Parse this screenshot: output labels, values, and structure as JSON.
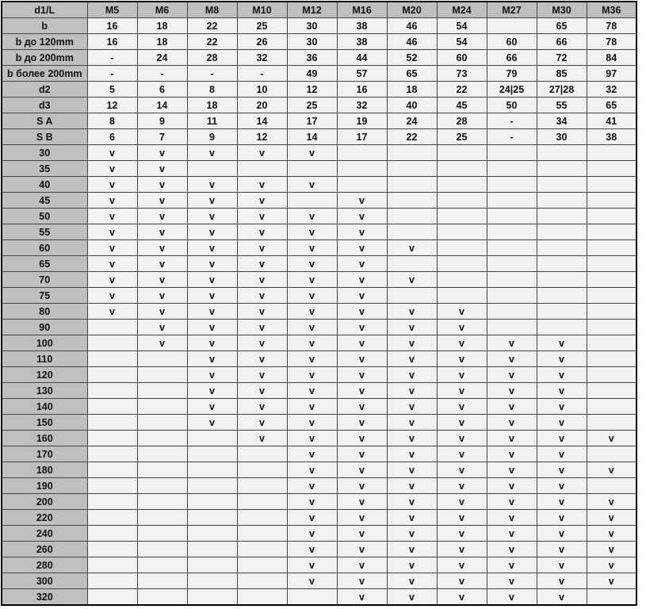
{
  "table": {
    "corner": "d1/L",
    "columns": [
      "M5",
      "M6",
      "M8",
      "M10",
      "M12",
      "M16",
      "M20",
      "M24",
      "M27",
      "M30",
      "M36"
    ],
    "rows": [
      {
        "label": "b",
        "cells": [
          "16",
          "18",
          "22",
          "25",
          "30",
          "38",
          "46",
          "54",
          "",
          "65",
          "78"
        ]
      },
      {
        "label": "b до 120mm",
        "cells": [
          "16",
          "18",
          "22",
          "26",
          "30",
          "38",
          "46",
          "54",
          "60",
          "66",
          "78"
        ]
      },
      {
        "label": "b до 200mm",
        "cells": [
          "-",
          "24",
          "28",
          "32",
          "36",
          "44",
          "52",
          "60",
          "66",
          "72",
          "84"
        ]
      },
      {
        "label": "b более 200mm",
        "cells": [
          "-",
          "-",
          "-",
          "-",
          "49",
          "57",
          "65",
          "73",
          "79",
          "85",
          "97"
        ]
      },
      {
        "label": "d2",
        "cells": [
          "5",
          "6",
          "8",
          "10",
          "12",
          "16",
          "18",
          "22",
          "24|25",
          "27|28",
          "32"
        ]
      },
      {
        "label": "d3",
        "cells": [
          "12",
          "14",
          "18",
          "20",
          "25",
          "32",
          "40",
          "45",
          "50",
          "55",
          "65"
        ]
      },
      {
        "label": "S A",
        "cells": [
          "8",
          "9",
          "11",
          "14",
          "17",
          "19",
          "24",
          "28",
          "-",
          "34",
          "41"
        ]
      },
      {
        "label": "S B",
        "cells": [
          "6",
          "7",
          "9",
          "12",
          "14",
          "17",
          "22",
          "25",
          "-",
          "30",
          "38"
        ]
      },
      {
        "label": "30",
        "cells": [
          "v",
          "v",
          "v",
          "v",
          "v",
          "",
          "",
          "",
          "",
          "",
          ""
        ]
      },
      {
        "label": "35",
        "cells": [
          "v",
          "v",
          "",
          "",
          "",
          "",
          "",
          "",
          "",
          "",
          ""
        ]
      },
      {
        "label": "40",
        "cells": [
          "v",
          "v",
          "v",
          "v",
          "v",
          "",
          "",
          "",
          "",
          "",
          ""
        ]
      },
      {
        "label": "45",
        "cells": [
          "v",
          "v",
          "v",
          "v",
          "",
          "v",
          "",
          "",
          "",
          "",
          ""
        ]
      },
      {
        "label": "50",
        "cells": [
          "v",
          "v",
          "v",
          "v",
          "v",
          "v",
          "",
          "",
          "",
          "",
          ""
        ]
      },
      {
        "label": "55",
        "cells": [
          "v",
          "v",
          "v",
          "v",
          "v",
          "v",
          "",
          "",
          "",
          "",
          ""
        ]
      },
      {
        "label": "60",
        "cells": [
          "v",
          "v",
          "v",
          "v",
          "v",
          "v",
          "v",
          "",
          "",
          "",
          ""
        ]
      },
      {
        "label": "65",
        "cells": [
          "v",
          "v",
          "v",
          "v",
          "v",
          "v",
          "",
          "",
          "",
          "",
          ""
        ]
      },
      {
        "label": "70",
        "cells": [
          "v",
          "v",
          "v",
          "v",
          "v",
          "v",
          "v",
          "",
          "",
          "",
          ""
        ]
      },
      {
        "label": "75",
        "cells": [
          "v",
          "v",
          "v",
          "v",
          "v",
          "v",
          "",
          "",
          "",
          "",
          ""
        ]
      },
      {
        "label": "80",
        "cells": [
          "v",
          "v",
          "v",
          "v",
          "v",
          "v",
          "v",
          "v",
          "",
          "",
          ""
        ]
      },
      {
        "label": "90",
        "cells": [
          "",
          "v",
          "v",
          "v",
          "v",
          "v",
          "v",
          "v",
          "",
          "",
          ""
        ]
      },
      {
        "label": "100",
        "cells": [
          "",
          "v",
          "v",
          "v",
          "v",
          "v",
          "v",
          "v",
          "v",
          "v",
          ""
        ]
      },
      {
        "label": "110",
        "cells": [
          "",
          "",
          "v",
          "v",
          "v",
          "v",
          "v",
          "v",
          "v",
          "v",
          ""
        ]
      },
      {
        "label": "120",
        "cells": [
          "",
          "",
          "v",
          "v",
          "v",
          "v",
          "v",
          "v",
          "v",
          "v",
          ""
        ]
      },
      {
        "label": "130",
        "cells": [
          "",
          "",
          "v",
          "v",
          "v",
          "v",
          "v",
          "v",
          "v",
          "v",
          ""
        ]
      },
      {
        "label": "140",
        "cells": [
          "",
          "",
          "v",
          "v",
          "v",
          "v",
          "v",
          "v",
          "v",
          "v",
          ""
        ]
      },
      {
        "label": "150",
        "cells": [
          "",
          "",
          "v",
          "v",
          "v",
          "v",
          "v",
          "v",
          "v",
          "v",
          ""
        ]
      },
      {
        "label": "160",
        "cells": [
          "",
          "",
          "",
          "v",
          "v",
          "v",
          "v",
          "v",
          "v",
          "v",
          "v"
        ]
      },
      {
        "label": "170",
        "cells": [
          "",
          "",
          "",
          "",
          "v",
          "v",
          "v",
          "v",
          "v",
          "v",
          ""
        ]
      },
      {
        "label": "180",
        "cells": [
          "",
          "",
          "",
          "",
          "v",
          "v",
          "v",
          "v",
          "v",
          "v",
          "v"
        ]
      },
      {
        "label": "190",
        "cells": [
          "",
          "",
          "",
          "",
          "v",
          "v",
          "v",
          "v",
          "v",
          "v",
          ""
        ]
      },
      {
        "label": "200",
        "cells": [
          "",
          "",
          "",
          "",
          "v",
          "v",
          "v",
          "v",
          "v",
          "v",
          "v"
        ]
      },
      {
        "label": "220",
        "cells": [
          "",
          "",
          "",
          "",
          "v",
          "v",
          "v",
          "v",
          "v",
          "v",
          "v"
        ]
      },
      {
        "label": "240",
        "cells": [
          "",
          "",
          "",
          "",
          "v",
          "v",
          "v",
          "v",
          "v",
          "v",
          "v"
        ]
      },
      {
        "label": "260",
        "cells": [
          "",
          "",
          "",
          "",
          "v",
          "v",
          "v",
          "v",
          "v",
          "v",
          "v"
        ]
      },
      {
        "label": "280",
        "cells": [
          "",
          "",
          "",
          "",
          "v",
          "v",
          "v",
          "v",
          "v",
          "v",
          "v"
        ]
      },
      {
        "label": "300",
        "cells": [
          "",
          "",
          "",
          "",
          "v",
          "v",
          "v",
          "v",
          "v",
          "v",
          "v"
        ]
      },
      {
        "label": "320",
        "cells": [
          "",
          "",
          "",
          "",
          "",
          "v",
          "v",
          "v",
          "v",
          "v",
          ""
        ]
      }
    ]
  }
}
